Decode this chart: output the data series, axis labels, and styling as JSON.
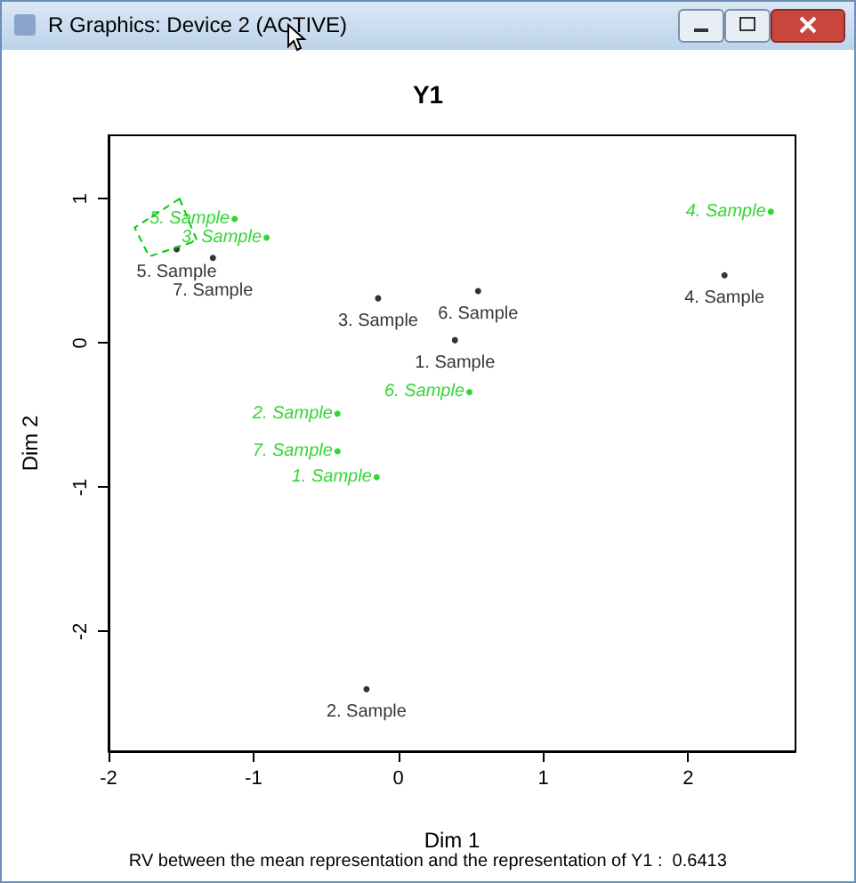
{
  "chart_data": {
    "type": "scatter",
    "title": "Y1",
    "xlabel": "Dim 1",
    "ylabel": "Dim 2",
    "annotations": [
      "R Graphics: Device 2 (ACTIVE)",
      "RV between the mean representation and the representation of Y1 :  0.6413",
      {
        "text": "1. Sample",
        "x": 0.39,
        "y": 0.02
      },
      {
        "text": "2. Sample",
        "x": -0.22,
        "y": -2.4
      },
      {
        "text": "3. Sample",
        "x": -0.14,
        "y": 0.31
      },
      {
        "text": "4. Sample",
        "x": 2.25,
        "y": 0.47
      },
      {
        "text": "5. Sample",
        "x": -1.53,
        "y": 0.65
      },
      {
        "text": "6. Sample",
        "x": 0.55,
        "y": 0.36
      },
      {
        "text": "7. Sample",
        "x": -1.28,
        "y": 0.59
      },
      {
        "text": "1. Sample",
        "x": -0.15,
        "y": -0.93
      },
      {
        "text": "2. Sample",
        "x": -0.42,
        "y": -0.49
      },
      {
        "text": "3. Sample",
        "x": -0.91,
        "y": 0.73
      },
      {
        "text": "4. Sample",
        "x": 2.57,
        "y": 0.91
      },
      {
        "text": "5. Sample",
        "x": -1.13,
        "y": 0.86
      },
      {
        "text": "6. Sample",
        "x": 0.49,
        "y": -0.34
      },
      {
        "text": "7. Sample",
        "x": -0.42,
        "y": -0.75
      }
    ],
    "xlim": [
      -2.0,
      2.74
    ],
    "ylim": [
      -2.83,
      1.44
    ],
    "xticks": [
      -2,
      -1,
      0,
      1,
      2
    ],
    "yticks": [
      -2,
      -1,
      0,
      1
    ],
    "grid": false,
    "marker": "circle",
    "series": [
      {
        "color": "#000000",
        "x": [
          0.39,
          -0.22,
          -0.14,
          2.25,
          -1.53,
          0.55,
          -1.28
        ],
        "values": [
          0.02,
          -2.4,
          0.31,
          0.47,
          0.65,
          0.36,
          0.59
        ]
      },
      {
        "color": "#00cc00",
        "x": [
          -0.15,
          -0.42,
          -0.91,
          2.57,
          -1.13,
          0.49,
          -0.42
        ],
        "values": [
          -0.93,
          -0.49,
          0.73,
          0.91,
          0.86,
          -0.34,
          -0.75
        ]
      }
    ]
  }
}
